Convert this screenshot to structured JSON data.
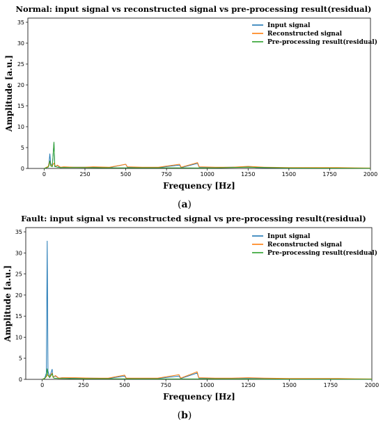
{
  "colors": {
    "input": "#1f77b4",
    "reconstructed": "#ff7f0e",
    "residual": "#2ca02c"
  },
  "chart_data": [
    {
      "type": "line",
      "title": "Normal: input signal vs reconstructed signal vs pre-processing result(residual)",
      "xlabel": "Frequency [Hz]",
      "ylabel": "Amplitude [a.u.]",
      "xlim": [
        -100,
        2000
      ],
      "ylim": [
        0,
        36
      ],
      "xticks": [
        "0",
        "250",
        "500",
        "750",
        "1000",
        "1250",
        "1500",
        "1750",
        "2000"
      ],
      "yticks": [
        "0",
        "5",
        "10",
        "15",
        "20",
        "25",
        "30",
        "35"
      ],
      "legend_position": "upper-right",
      "caption_letter": "a",
      "series": [
        {
          "name": "Input signal",
          "color_key": "input",
          "points": [
            [
              0,
              0
            ],
            [
              15,
              0.2
            ],
            [
              25,
              0.4
            ],
            [
              30,
              1.5
            ],
            [
              35,
              3.5
            ],
            [
              40,
              1.2
            ],
            [
              50,
              0.5
            ],
            [
              60,
              6.3
            ],
            [
              65,
              0.4
            ],
            [
              80,
              0.7
            ],
            [
              100,
              0.2
            ],
            [
              120,
              0.3
            ],
            [
              200,
              0.3
            ],
            [
              300,
              0.3
            ],
            [
              400,
              0.2
            ],
            [
              500,
              1.0
            ],
            [
              510,
              0.3
            ],
            [
              600,
              0.2
            ],
            [
              700,
              0.2
            ],
            [
              830,
              0.8
            ],
            [
              840,
              0.2
            ],
            [
              940,
              1.2
            ],
            [
              950,
              0.3
            ],
            [
              1050,
              0.2
            ],
            [
              1250,
              0.4
            ],
            [
              1300,
              0.2
            ],
            [
              1500,
              0.1
            ],
            [
              1650,
              0.1
            ],
            [
              1800,
              0.1
            ],
            [
              2000,
              0.05
            ]
          ]
        },
        {
          "name": "Reconstructed signal",
          "color_key": "reconstructed",
          "points": [
            [
              0,
              0
            ],
            [
              15,
              0.3
            ],
            [
              25,
              0.5
            ],
            [
              30,
              1.2
            ],
            [
              35,
              1.8
            ],
            [
              40,
              0.9
            ],
            [
              50,
              0.6
            ],
            [
              60,
              1.3
            ],
            [
              70,
              0.4
            ],
            [
              80,
              0.8
            ],
            [
              100,
              0.3
            ],
            [
              120,
              0.4
            ],
            [
              180,
              0.3
            ],
            [
              250,
              0.3
            ],
            [
              300,
              0.4
            ],
            [
              400,
              0.3
            ],
            [
              500,
              1.0
            ],
            [
              510,
              0.4
            ],
            [
              600,
              0.3
            ],
            [
              700,
              0.3
            ],
            [
              830,
              1.0
            ],
            [
              840,
              0.3
            ],
            [
              940,
              1.4
            ],
            [
              950,
              0.4
            ],
            [
              1050,
              0.3
            ],
            [
              1150,
              0.3
            ],
            [
              1250,
              0.5
            ],
            [
              1350,
              0.3
            ],
            [
              1500,
              0.2
            ],
            [
              1650,
              0.2
            ],
            [
              1800,
              0.2
            ],
            [
              2000,
              0.1
            ]
          ]
        },
        {
          "name": "Pre-processing result(residual)",
          "color_key": "residual",
          "points": [
            [
              0,
              0
            ],
            [
              15,
              0.2
            ],
            [
              25,
              0.3
            ],
            [
              30,
              0.8
            ],
            [
              35,
              1.8
            ],
            [
              40,
              0.6
            ],
            [
              50,
              0.4
            ],
            [
              60,
              6.3
            ],
            [
              65,
              0.5
            ],
            [
              80,
              0.3
            ],
            [
              100,
              0.2
            ],
            [
              200,
              0.2
            ],
            [
              400,
              0.15
            ],
            [
              600,
              0.15
            ],
            [
              800,
              0.15
            ],
            [
              1000,
              0.1
            ],
            [
              1250,
              0.3
            ],
            [
              1500,
              0.1
            ],
            [
              2000,
              0.05
            ]
          ]
        }
      ]
    },
    {
      "type": "line",
      "title": "Fault: input signal vs reconstructed signal vs pre-processing result(residual)",
      "xlabel": "Frequency [Hz]",
      "ylabel": "Amplitude [a.u.]",
      "xlim": [
        -100,
        2000
      ],
      "ylim": [
        0,
        36
      ],
      "xticks": [
        "0",
        "250",
        "500",
        "750",
        "1000",
        "1250",
        "1500",
        "1750",
        "2000"
      ],
      "yticks": [
        "0",
        "5",
        "10",
        "15",
        "20",
        "25",
        "30",
        "35"
      ],
      "legend_position": "upper-right",
      "caption_letter": "b",
      "series": [
        {
          "name": "Input signal",
          "color_key": "input",
          "points": [
            [
              0,
              0
            ],
            [
              15,
              0.3
            ],
            [
              25,
              1.5
            ],
            [
              30,
              32.8
            ],
            [
              35,
              2.0
            ],
            [
              45,
              0.6
            ],
            [
              60,
              2.4
            ],
            [
              65,
              0.5
            ],
            [
              80,
              0.8
            ],
            [
              100,
              0.3
            ],
            [
              120,
              0.4
            ],
            [
              200,
              0.3
            ],
            [
              300,
              0.3
            ],
            [
              400,
              0.2
            ],
            [
              500,
              0.8
            ],
            [
              510,
              0.2
            ],
            [
              600,
              0.2
            ],
            [
              700,
              0.2
            ],
            [
              830,
              0.8
            ],
            [
              840,
              0.2
            ],
            [
              940,
              1.5
            ],
            [
              950,
              0.3
            ],
            [
              1050,
              0.2
            ],
            [
              1250,
              0.3
            ],
            [
              1500,
              0.1
            ],
            [
              1700,
              0.1
            ],
            [
              2000,
              0.05
            ]
          ]
        },
        {
          "name": "Reconstructed signal",
          "color_key": "reconstructed",
          "points": [
            [
              0,
              0
            ],
            [
              15,
              0.3
            ],
            [
              25,
              0.6
            ],
            [
              30,
              1.1
            ],
            [
              40,
              0.7
            ],
            [
              50,
              0.9
            ],
            [
              60,
              1.5
            ],
            [
              65,
              0.5
            ],
            [
              80,
              0.9
            ],
            [
              100,
              0.3
            ],
            [
              130,
              0.4
            ],
            [
              200,
              0.4
            ],
            [
              300,
              0.3
            ],
            [
              400,
              0.3
            ],
            [
              500,
              1.0
            ],
            [
              510,
              0.3
            ],
            [
              600,
              0.3
            ],
            [
              700,
              0.3
            ],
            [
              830,
              1.1
            ],
            [
              840,
              0.3
            ],
            [
              940,
              1.8
            ],
            [
              950,
              0.4
            ],
            [
              1050,
              0.3
            ],
            [
              1150,
              0.3
            ],
            [
              1250,
              0.4
            ],
            [
              1350,
              0.3
            ],
            [
              1500,
              0.2
            ],
            [
              1650,
              0.2
            ],
            [
              1800,
              0.2
            ],
            [
              2000,
              0.1
            ]
          ]
        },
        {
          "name": "Pre-processing result(residual)",
          "color_key": "residual",
          "points": [
            [
              0,
              0
            ],
            [
              15,
              0.2
            ],
            [
              25,
              0.8
            ],
            [
              30,
              2.5
            ],
            [
              35,
              1.0
            ],
            [
              45,
              0.4
            ],
            [
              60,
              1.3
            ],
            [
              70,
              0.3
            ],
            [
              100,
              0.2
            ],
            [
              200,
              0.15
            ],
            [
              400,
              0.15
            ],
            [
              600,
              0.1
            ],
            [
              800,
              0.1
            ],
            [
              1000,
              0.1
            ],
            [
              1500,
              0.05
            ],
            [
              2000,
              0.05
            ]
          ]
        }
      ]
    }
  ]
}
